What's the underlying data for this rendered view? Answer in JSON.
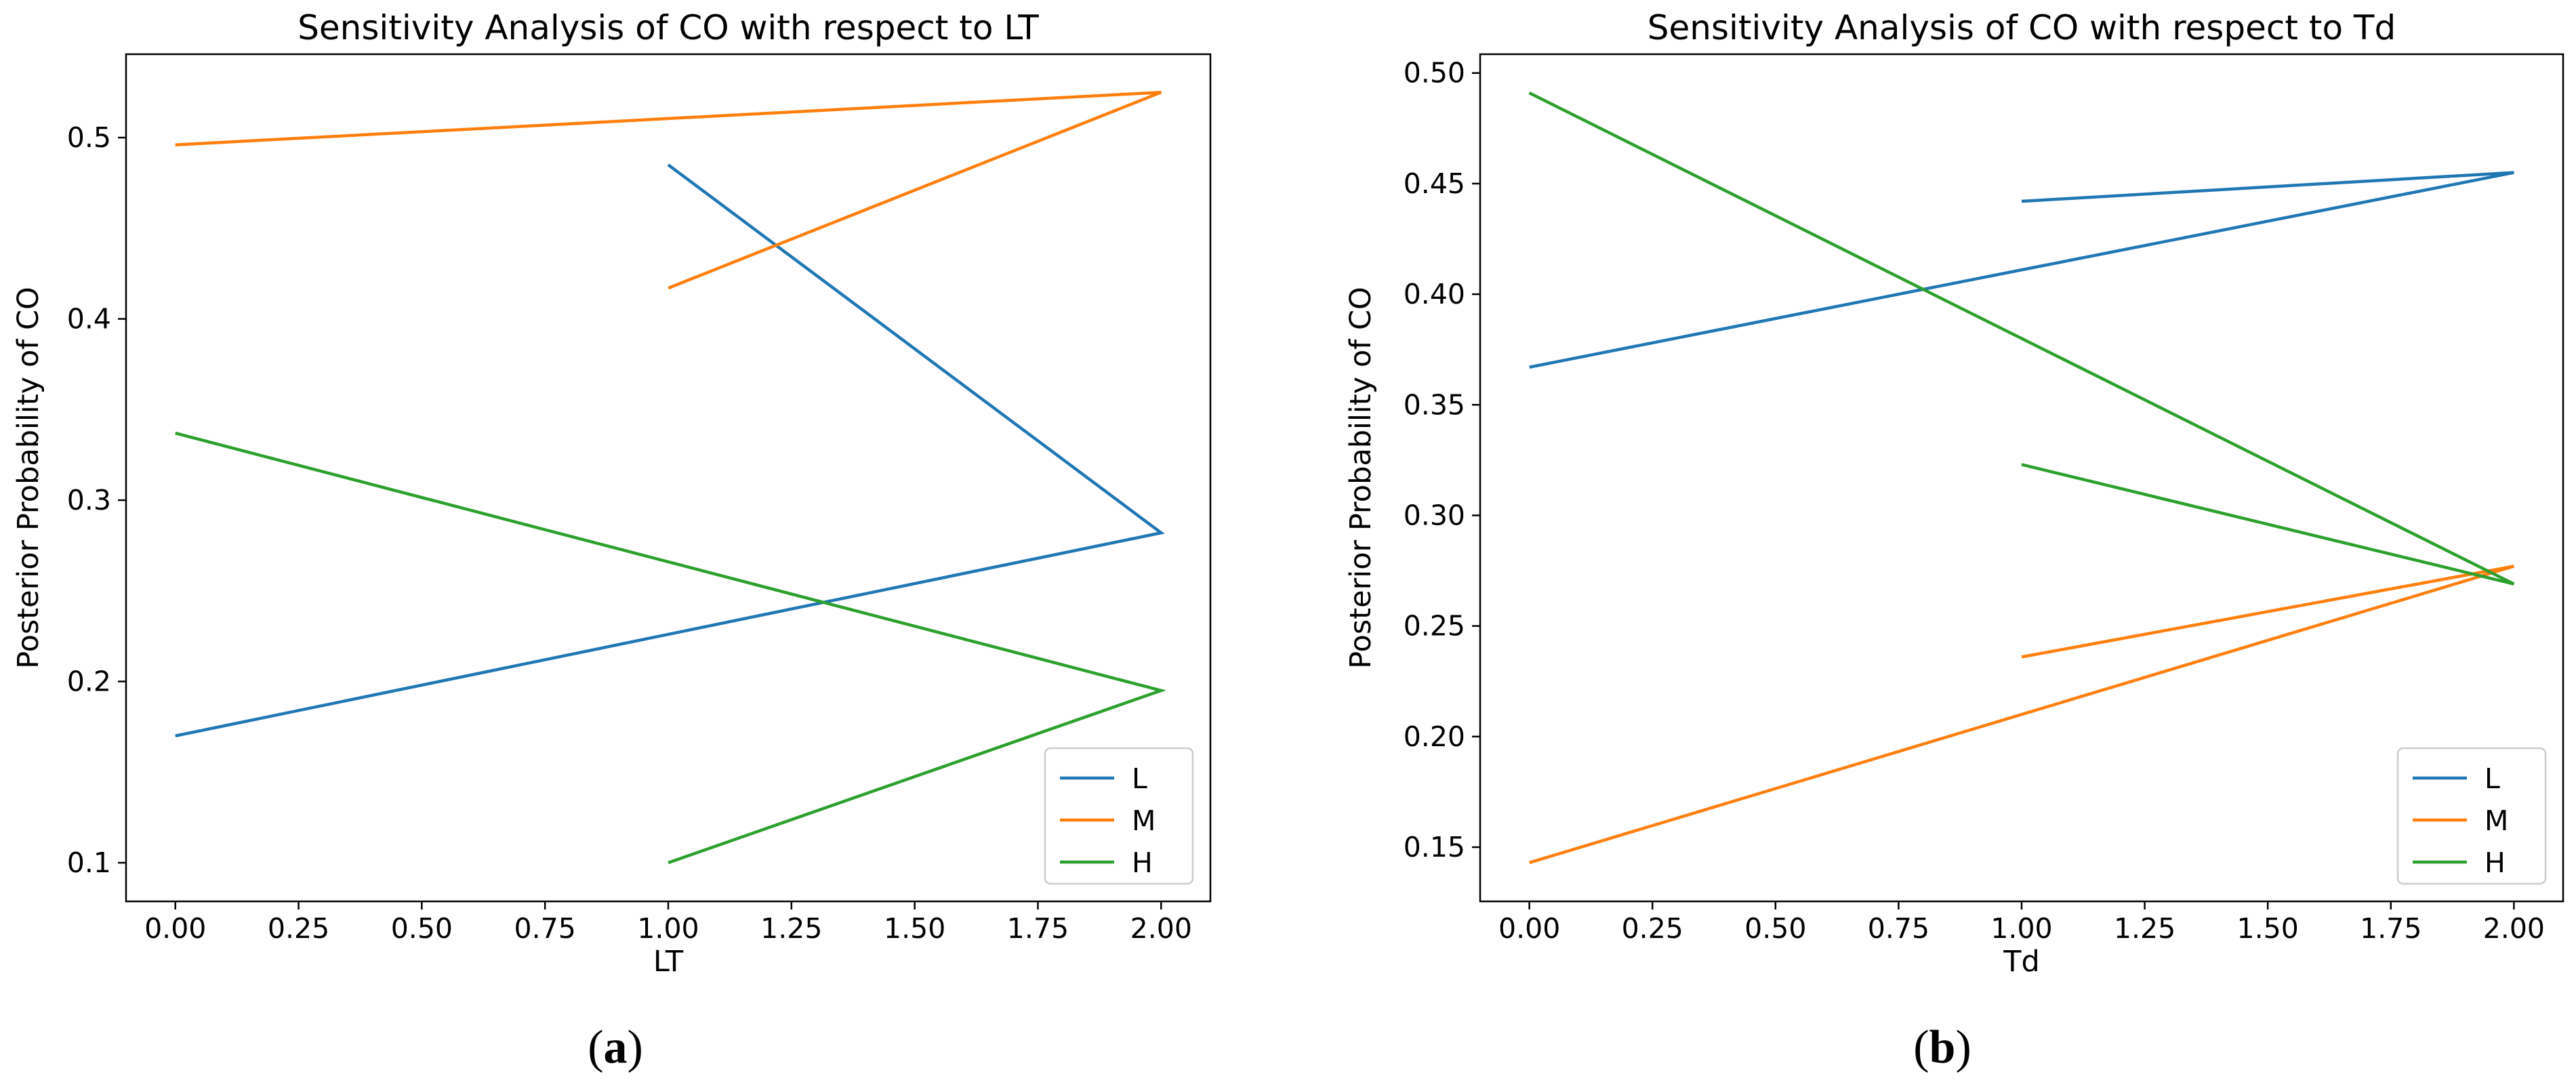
{
  "figure": {
    "panel_labels": [
      {
        "open": "(",
        "letter": "a",
        "close": ")"
      },
      {
        "open": "(",
        "letter": "b",
        "close": ")"
      }
    ]
  },
  "chart_data": [
    {
      "type": "line",
      "title": "Sensitivity Analysis of CO with respect to LT",
      "xlabel": "LT",
      "ylabel": "Posterior Probability of CO",
      "xlim": [
        -0.1,
        2.1
      ],
      "ylim": [
        0.0787,
        0.546
      ],
      "xticks": [
        0,
        0.25,
        0.5,
        0.75,
        1.0,
        1.25,
        1.5,
        1.75,
        2.0
      ],
      "xtick_labels": [
        "0.00",
        "0.25",
        "0.50",
        "0.75",
        "1.00",
        "1.25",
        "1.50",
        "1.75",
        "2.00"
      ],
      "yticks": [
        0.1,
        0.2,
        0.3,
        0.4,
        0.5
      ],
      "ytick_labels": [
        "0.1",
        "0.2",
        "0.3",
        "0.4",
        "0.5"
      ],
      "legend_position": "lower-right",
      "series": [
        {
          "name": "L",
          "color": "#1f77b4",
          "x": [
            1,
            2,
            0
          ],
          "y": [
            0.485,
            0.282,
            0.17
          ]
        },
        {
          "name": "M",
          "color": "#ff7f0e",
          "x": [
            1,
            2,
            0
          ],
          "y": [
            0.417,
            0.525,
            0.496
          ]
        },
        {
          "name": "H",
          "color": "#2ca02c",
          "x": [
            1,
            2,
            0
          ],
          "y": [
            0.1,
            0.195,
            0.337
          ]
        }
      ]
    },
    {
      "type": "line",
      "title": "Sensitivity Analysis of CO with respect to Td",
      "xlabel": "Td",
      "ylabel": "Posterior Probability of CO",
      "xlim": [
        -0.1,
        2.1
      ],
      "ylim": [
        0.1255,
        0.5085
      ],
      "xticks": [
        0,
        0.25,
        0.5,
        0.75,
        1.0,
        1.25,
        1.5,
        1.75,
        2.0
      ],
      "xtick_labels": [
        "0.00",
        "0.25",
        "0.50",
        "0.75",
        "1.00",
        "1.25",
        "1.50",
        "1.75",
        "2.00"
      ],
      "yticks": [
        0.15,
        0.2,
        0.25,
        0.3,
        0.35,
        0.4,
        0.45,
        0.5
      ],
      "ytick_labels": [
        "0.15",
        "0.20",
        "0.25",
        "0.30",
        "0.35",
        "0.40",
        "0.45",
        "0.50"
      ],
      "legend_position": "lower-right",
      "series": [
        {
          "name": "L",
          "color": "#1f77b4",
          "x": [
            1,
            2,
            0
          ],
          "y": [
            0.442,
            0.455,
            0.367
          ]
        },
        {
          "name": "M",
          "color": "#ff7f0e",
          "x": [
            1,
            2,
            0
          ],
          "y": [
            0.236,
            0.277,
            0.143
          ]
        },
        {
          "name": "H",
          "color": "#2ca02c",
          "x": [
            1,
            2,
            0
          ],
          "y": [
            0.323,
            0.269,
            0.491
          ]
        }
      ]
    }
  ]
}
